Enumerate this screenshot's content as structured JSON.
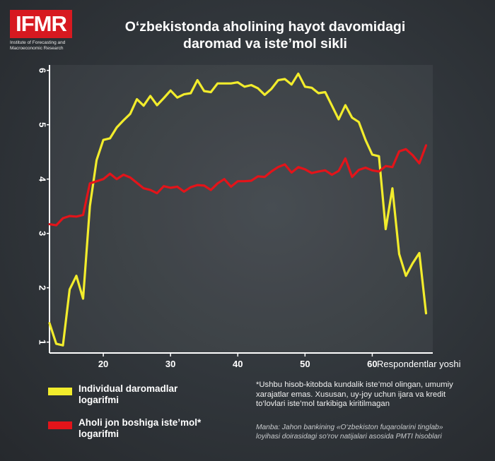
{
  "logo": {
    "mark": "IFMR",
    "subtitle": "Institute of Forecasting and Macroeconomic Research"
  },
  "title": {
    "line1": "O‘zbekistonda aholining hayot davomidagi",
    "line2": "daromad va iste’mol sikli"
  },
  "chart_data": {
    "type": "line",
    "title": "O‘zbekistonda aholining hayot davomidagi daromad va iste’mol sikli",
    "xlabel": "Respondentlar yoshi",
    "ylabel": "",
    "xlim": [
      12,
      69
    ],
    "ylim": [
      0.8,
      6.1
    ],
    "x_ticks": [
      "20",
      "30",
      "40",
      "50",
      "60"
    ],
    "y_ticks": [
      "1",
      "2",
      "3",
      "4",
      "5",
      "6"
    ],
    "grid": false,
    "legend_position": "bottom-left",
    "x": [
      12,
      13,
      14,
      15,
      16,
      17,
      18,
      19,
      20,
      21,
      22,
      23,
      24,
      25,
      26,
      27,
      28,
      29,
      30,
      31,
      32,
      33,
      34,
      35,
      36,
      37,
      38,
      39,
      40,
      41,
      42,
      43,
      44,
      45,
      46,
      47,
      48,
      49,
      50,
      51,
      52,
      53,
      54,
      55,
      56,
      57,
      58,
      59,
      60,
      61,
      62,
      63,
      64,
      65,
      66,
      67,
      68
    ],
    "series": [
      {
        "name": "Individual daromadlar logarifmi",
        "color": "#f2ec2c",
        "values": [
          1.35,
          0.97,
          0.94,
          1.97,
          2.22,
          1.8,
          3.5,
          4.35,
          4.72,
          4.75,
          4.95,
          5.08,
          5.2,
          5.47,
          5.35,
          5.53,
          5.36,
          5.49,
          5.63,
          5.5,
          5.56,
          5.58,
          5.82,
          5.62,
          5.6,
          5.76,
          5.76,
          5.76,
          5.78,
          5.7,
          5.73,
          5.67,
          5.55,
          5.66,
          5.82,
          5.84,
          5.74,
          5.94,
          5.7,
          5.68,
          5.58,
          5.6,
          5.35,
          5.1,
          5.36,
          5.13,
          5.05,
          4.72,
          4.45,
          4.42,
          3.08,
          3.83,
          2.62,
          2.22,
          2.45,
          2.64,
          1.53
        ]
      },
      {
        "name": "Aholi jon boshiga iste’mol* logarifmi",
        "color": "#e3141a",
        "values": [
          3.17,
          3.15,
          3.28,
          3.32,
          3.31,
          3.34,
          3.92,
          3.96,
          4.0,
          4.1,
          4.0,
          4.08,
          4.03,
          3.93,
          3.83,
          3.8,
          3.74,
          3.87,
          3.84,
          3.86,
          3.77,
          3.85,
          3.89,
          3.88,
          3.8,
          3.92,
          4.0,
          3.86,
          3.96,
          3.96,
          3.97,
          4.05,
          4.04,
          4.14,
          4.22,
          4.27,
          4.12,
          4.22,
          4.18,
          4.11,
          4.14,
          4.16,
          4.08,
          4.15,
          4.38,
          4.04,
          4.17,
          4.21,
          4.16,
          4.14,
          4.24,
          4.22,
          4.51,
          4.55,
          4.44,
          4.29,
          4.62
        ]
      }
    ]
  },
  "x_axis_label": "Respondentlar yoshi",
  "legend": {
    "income": {
      "label": "Individual daromadlar logarifmi",
      "color": "#f2ec2c"
    },
    "consumption": {
      "label": "Aholi jon boshiga iste’mol* logarifmi",
      "color": "#e3141a"
    }
  },
  "footnote": "*Ushbu hisob-kitobda kundalik iste’mol olingan, umumiy xarajatlar emas. Xususan, uy-joy uchun ijara va kredit to‘lovlari iste’mol tarkibiga kiritilmagan",
  "source": "Manba: Jahon bankining «O‘zbekiston fuqarolarini tinglab» loyihasi doirasidagi so‘rov natijalari asosida PMTI hisoblari"
}
